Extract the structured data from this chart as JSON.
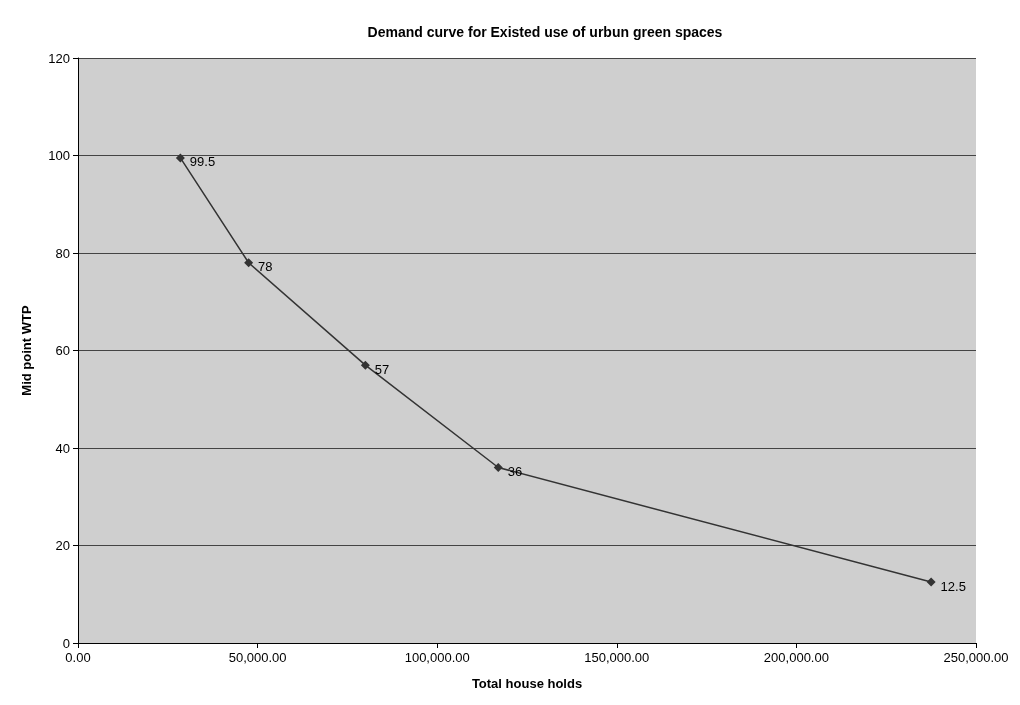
{
  "chart_data": {
    "type": "line",
    "title": "Demand curve for Existed use of urbun green spaces",
    "xlabel": "Total house holds",
    "ylabel": "Mid point WTP",
    "x": [
      28500,
      47500,
      80000,
      117000,
      237500
    ],
    "series": [
      {
        "color": "#333333",
        "values": [
          99.5,
          78,
          57,
          36,
          12.5
        ]
      }
    ],
    "xlim": [
      0,
      250000
    ],
    "xticks": [
      {
        "value": 0,
        "label": "0.00"
      },
      {
        "value": 50000,
        "label": "50,000.00"
      },
      {
        "value": 100000,
        "label": "100,000.00"
      },
      {
        "value": 150000,
        "label": "150,000.00"
      },
      {
        "value": 200000,
        "label": "200,000.00"
      },
      {
        "value": 250000,
        "label": "250,000.00"
      }
    ],
    "ylim": [
      0,
      120
    ],
    "yticks": [
      0,
      20,
      40,
      60,
      80,
      100,
      120
    ],
    "grid": "y",
    "marker": "diamond",
    "line_style": "solid",
    "data_labels": true
  }
}
